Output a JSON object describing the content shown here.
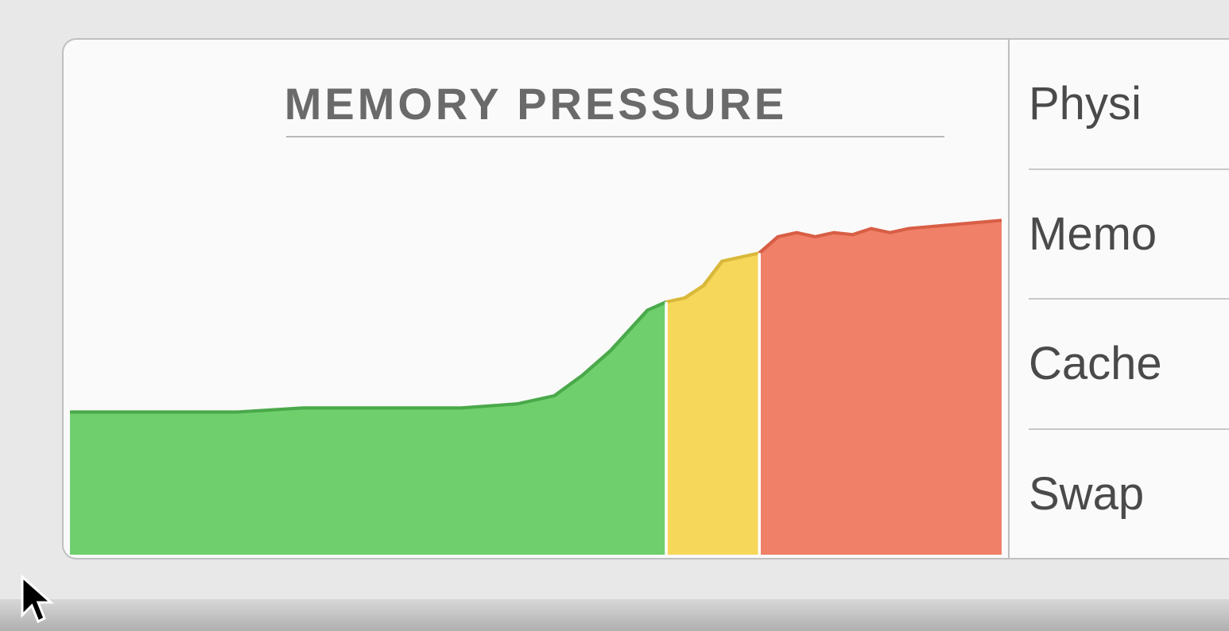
{
  "chart": {
    "title": "MEMORY PRESSURE",
    "type": "area",
    "background_color": "#fafafa",
    "title_color": "#6a6a6a",
    "title_fontsize": 56,
    "title_letter_spacing": 4,
    "xlim": [
      0,
      100
    ],
    "ylim": [
      0,
      100
    ],
    "segments": [
      {
        "name": "green-zone",
        "fill": "#6fcf6d",
        "stroke": "#4aa94a",
        "points": [
          [
            0,
            35
          ],
          [
            18,
            35
          ],
          [
            25,
            36
          ],
          [
            35,
            36
          ],
          [
            42,
            36
          ],
          [
            48,
            37
          ],
          [
            52,
            39
          ],
          [
            55,
            44
          ],
          [
            58,
            50
          ],
          [
            60,
            55
          ],
          [
            62,
            60
          ],
          [
            64,
            62
          ]
        ]
      },
      {
        "name": "yellow-zone",
        "fill": "#f7d75a",
        "stroke": "#d9b83a",
        "points": [
          [
            64,
            62
          ],
          [
            66,
            63
          ],
          [
            68,
            66
          ],
          [
            70,
            72
          ],
          [
            72,
            73
          ],
          [
            74,
            74
          ]
        ]
      },
      {
        "name": "red-zone",
        "fill": "#f08068",
        "stroke": "#d85e45",
        "points": [
          [
            74,
            74
          ],
          [
            76,
            78
          ],
          [
            78,
            79
          ],
          [
            80,
            78
          ],
          [
            82,
            79
          ],
          [
            84,
            78.5
          ],
          [
            86,
            80
          ],
          [
            88,
            79
          ],
          [
            90,
            80
          ],
          [
            95,
            81
          ],
          [
            100,
            82
          ]
        ]
      }
    ],
    "gap_color": "#ffffff",
    "gap_width": 3
  },
  "stats": {
    "rows": [
      {
        "label": "Physi"
      },
      {
        "label": "Memo"
      },
      {
        "label": "Cache"
      },
      {
        "label": "Swap"
      }
    ],
    "label_fontsize": 58,
    "label_color": "#4a4a4a",
    "divider_color": "#c8c8c8"
  },
  "panel": {
    "border_color": "#bfbfbf",
    "border_radius": 18,
    "background": "#fafafa"
  },
  "page": {
    "background": "#e8e8e8"
  }
}
